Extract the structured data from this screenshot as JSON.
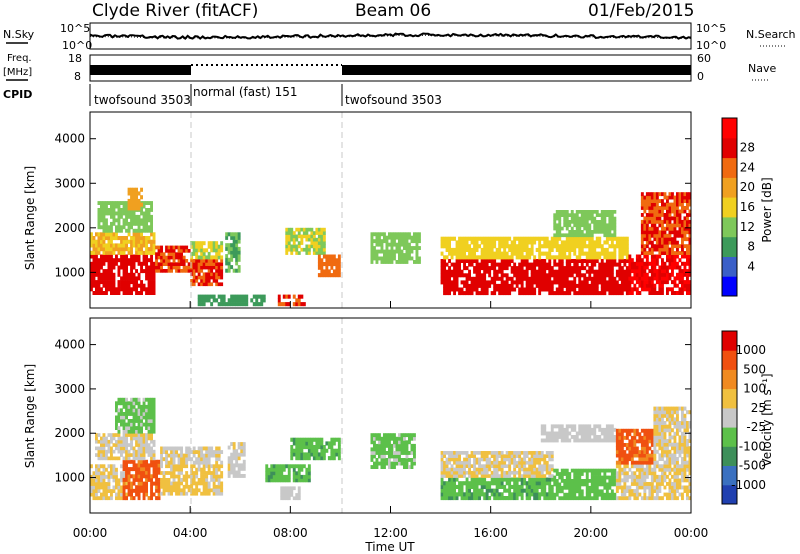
{
  "header": {
    "station": "Clyde River (fitACF)",
    "beam": "Beam 06",
    "date": "01/Feb/2015"
  },
  "top_panels": {
    "nsky_label": "N.Sky",
    "nsearch_label": "N.Search",
    "freq_label_1": "Freq.",
    "freq_label_2": "[MHz]",
    "nave_label": "Nave",
    "cpid_label": "CPID",
    "noise_left_ticks": [
      "10^5",
      "10^0"
    ],
    "noise_right_ticks": [
      "10^5",
      "10^0"
    ],
    "freq_left_ticks": [
      "18",
      "8"
    ],
    "nave_right_ticks": [
      "60",
      "0"
    ]
  },
  "cpid_segments": [
    {
      "label": "twofsound 3503",
      "start_hour": 0,
      "end_hour": 4
    },
    {
      "label": "normal (fast) 151",
      "start_hour": 4,
      "end_hour": 10
    },
    {
      "label": "twofsound 3503",
      "start_hour": 10,
      "end_hour": 24
    }
  ],
  "axes": {
    "ylabel": "Slant Range [km]",
    "xlabel": "Time UT",
    "y_ticks": [
      "1000",
      "2000",
      "3000",
      "4000"
    ],
    "x_ticks": [
      "00:00",
      "04:00",
      "08:00",
      "12:00",
      "16:00",
      "20:00",
      "00:00"
    ]
  },
  "power_scale": {
    "label": "Power [dB]",
    "ticks": [
      "4",
      "8",
      "12",
      "16",
      "20",
      "24",
      "28"
    ],
    "colors": [
      "#0000ff",
      "#3a5fc8",
      "#3c9a5a",
      "#7ec85a",
      "#f0d020",
      "#f0a020",
      "#f06a10",
      "#e00000",
      "#ff0000"
    ]
  },
  "velocity_scale": {
    "label": "Velocity [m s⁻¹]",
    "ticks": [
      "1000",
      "500",
      "100",
      "25",
      "-25",
      "-100",
      "-500",
      "-1000"
    ],
    "colors": [
      "#2040b0",
      "#3a70c0",
      "#3d8f5a",
      "#5cc04a",
      "#c8c8c8",
      "#f0c040",
      "#f08a20",
      "#f05010",
      "#e00000"
    ]
  },
  "chart_data": [
    {
      "type": "heatmap",
      "title": "Power [dB]",
      "xlabel": "Time UT",
      "ylabel": "Slant Range [km]",
      "xlim": [
        0,
        24
      ],
      "ylim": [
        200,
        4600
      ],
      "clim": [
        0,
        32
      ],
      "regions": [
        {
          "t0": 0.0,
          "t1": 2.6,
          "r0": 500,
          "r1": 1400,
          "value": 28
        },
        {
          "t0": 0.0,
          "t1": 2.6,
          "r0": 1400,
          "r1": 1900,
          "value": 18
        },
        {
          "t0": 0.3,
          "t1": 2.5,
          "r0": 1900,
          "r1": 2600,
          "value": 12
        },
        {
          "t0": 1.5,
          "t1": 2.1,
          "r0": 2400,
          "r1": 2900,
          "value": 20
        },
        {
          "t0": 2.6,
          "t1": 4.0,
          "r0": 1000,
          "r1": 1600,
          "value": 26
        },
        {
          "t0": 4.0,
          "t1": 5.3,
          "r0": 700,
          "r1": 1300,
          "value": 26
        },
        {
          "t0": 4.0,
          "t1": 5.3,
          "r0": 1300,
          "r1": 1700,
          "value": 14
        },
        {
          "t0": 5.4,
          "t1": 6.0,
          "r0": 1000,
          "r1": 1900,
          "value": 10
        },
        {
          "t0": 4.3,
          "t1": 7.0,
          "r0": 250,
          "r1": 500,
          "value": 8
        },
        {
          "t0": 7.5,
          "t1": 8.6,
          "r0": 250,
          "r1": 500,
          "value": 26
        },
        {
          "t0": 7.8,
          "t1": 9.4,
          "r0": 1400,
          "r1": 2000,
          "value": 14
        },
        {
          "t0": 9.1,
          "t1": 10.0,
          "r0": 900,
          "r1": 1400,
          "value": 24
        },
        {
          "t0": 11.2,
          "t1": 13.2,
          "r0": 1200,
          "r1": 1900,
          "value": 12
        },
        {
          "t0": 14.0,
          "t1": 21.5,
          "r0": 500,
          "r1": 1300,
          "value": 28
        },
        {
          "t0": 14.0,
          "t1": 21.5,
          "r0": 1300,
          "r1": 1800,
          "value": 16
        },
        {
          "t0": 18.5,
          "t1": 21.0,
          "r0": 1800,
          "r1": 2400,
          "value": 12
        },
        {
          "t0": 21.5,
          "t1": 24.0,
          "r0": 500,
          "r1": 1400,
          "value": 30
        },
        {
          "t0": 22.0,
          "t1": 24.0,
          "r0": 1400,
          "r1": 2800,
          "value": 26
        }
      ]
    },
    {
      "type": "heatmap",
      "title": "Velocity [m s⁻¹]",
      "xlabel": "Time UT",
      "ylabel": "Slant Range [km]",
      "xlim": [
        0,
        24
      ],
      "ylim": [
        200,
        4600
      ],
      "clim": [
        -1000,
        1000
      ],
      "regions": [
        {
          "t0": 0.0,
          "t1": 1.5,
          "r0": 500,
          "r1": 1300,
          "value": 150
        },
        {
          "t0": 1.3,
          "t1": 2.8,
          "r0": 500,
          "r1": 1400,
          "value": 700
        },
        {
          "t0": 0.2,
          "t1": 2.6,
          "r0": 1400,
          "r1": 2000,
          "value": 100
        },
        {
          "t0": 1.0,
          "t1": 2.6,
          "r0": 2000,
          "r1": 2800,
          "value": -200
        },
        {
          "t0": 2.8,
          "t1": 5.3,
          "r0": 600,
          "r1": 1300,
          "value": 200
        },
        {
          "t0": 2.8,
          "t1": 5.3,
          "r0": 1300,
          "r1": 1700,
          "value": 80
        },
        {
          "t0": 5.5,
          "t1": 6.2,
          "r0": 1000,
          "r1": 1800,
          "value": 60
        },
        {
          "t0": 7.6,
          "t1": 8.4,
          "r0": 500,
          "r1": 800,
          "value": 0
        },
        {
          "t0": 7.0,
          "t1": 8.8,
          "r0": 900,
          "r1": 1300,
          "value": -300
        },
        {
          "t0": 8.0,
          "t1": 10.0,
          "r0": 1400,
          "r1": 1900,
          "value": -300
        },
        {
          "t0": 11.2,
          "t1": 13.0,
          "r0": 1200,
          "r1": 2000,
          "value": -200
        },
        {
          "t0": 14.0,
          "t1": 18.5,
          "r0": 500,
          "r1": 1000,
          "value": -300
        },
        {
          "t0": 14.0,
          "t1": 18.5,
          "r0": 1000,
          "r1": 1600,
          "value": 120
        },
        {
          "t0": 18.5,
          "t1": 21.0,
          "r0": 500,
          "r1": 1200,
          "value": -250
        },
        {
          "t0": 18.0,
          "t1": 21.0,
          "r0": 1800,
          "r1": 2200,
          "value": 0
        },
        {
          "t0": 21.0,
          "t1": 24.0,
          "r0": 500,
          "r1": 1300,
          "value": 150
        },
        {
          "t0": 21.0,
          "t1": 22.5,
          "r0": 1300,
          "r1": 2100,
          "value": 700
        },
        {
          "t0": 22.5,
          "t1": 24.0,
          "r0": 1300,
          "r1": 2600,
          "value": 120
        }
      ]
    }
  ]
}
